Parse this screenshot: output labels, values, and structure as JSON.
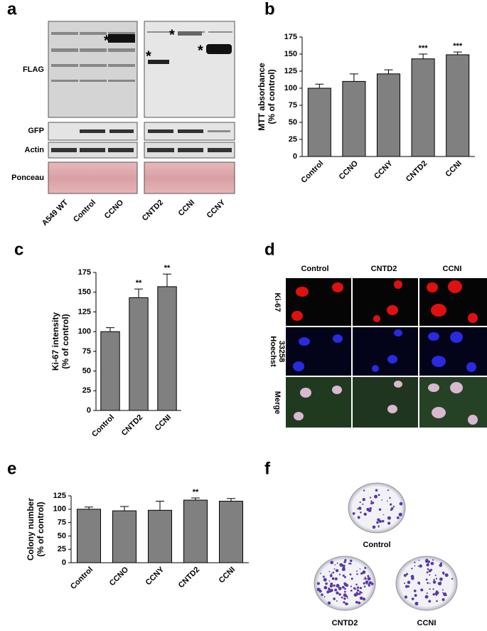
{
  "panel_labels": [
    "a",
    "b",
    "c",
    "d",
    "e",
    "f"
  ],
  "blot": {
    "rows": [
      "FLAG",
      "GFP",
      "Actin",
      "Ponceau"
    ],
    "lanes": [
      "A549 WT",
      "Control",
      "CCNO",
      "CNTD2",
      "CCNI",
      "CCNY"
    ],
    "markers": [
      "*",
      "*",
      "*",
      "*"
    ]
  },
  "microscopy": {
    "columns": [
      "Control",
      "CNTD2",
      "CCNI"
    ],
    "rows": [
      [
        "Ki-67"
      ],
      [
        "Hoechst",
        "33258"
      ],
      [
        "Merge"
      ]
    ]
  },
  "dishes": {
    "labels": [
      "Control",
      "CNTD2",
      "CCNI"
    ]
  },
  "chart_data": [
    {
      "type": "bar",
      "ylabel": [
        "MTT absorbance",
        "(% of control)"
      ],
      "categories": [
        "Control",
        "CCNO",
        "CCNY",
        "CNTD2",
        "CCNI"
      ],
      "values": [
        100,
        110,
        121,
        143,
        149
      ],
      "errors": [
        6,
        11,
        6,
        7,
        4
      ],
      "annotations": [
        null,
        null,
        null,
        "***",
        "***"
      ],
      "color": "#808080",
      "ylim": [
        0,
        175
      ],
      "yticks": [
        0,
        25,
        50,
        75,
        100,
        125,
        150,
        175
      ]
    },
    {
      "type": "bar",
      "ylabel": [
        "Ki-67 intensity",
        "(% of control)"
      ],
      "categories": [
        "Control",
        "CNTD2",
        "CCNI"
      ],
      "values": [
        100,
        143,
        157
      ],
      "errors": [
        5,
        11,
        16
      ],
      "annotations": [
        null,
        "**",
        "**"
      ],
      "color": "#808080",
      "ylim": [
        0,
        175
      ],
      "yticks": [
        0,
        25,
        50,
        75,
        100,
        125,
        150,
        175
      ]
    },
    {
      "type": "bar",
      "ylabel": [
        "Colony number",
        "(% of control)"
      ],
      "categories": [
        "Control",
        "CCNO",
        "CCNY",
        "CNTD2",
        "CCNI"
      ],
      "values": [
        100,
        97,
        98,
        117,
        115
      ],
      "errors": [
        4,
        8,
        17,
        4,
        5
      ],
      "annotations": [
        null,
        null,
        null,
        "**",
        null
      ],
      "color": "#808080",
      "ylim": [
        0,
        125
      ],
      "yticks": [
        0,
        25,
        50,
        75,
        100,
        125
      ]
    }
  ]
}
